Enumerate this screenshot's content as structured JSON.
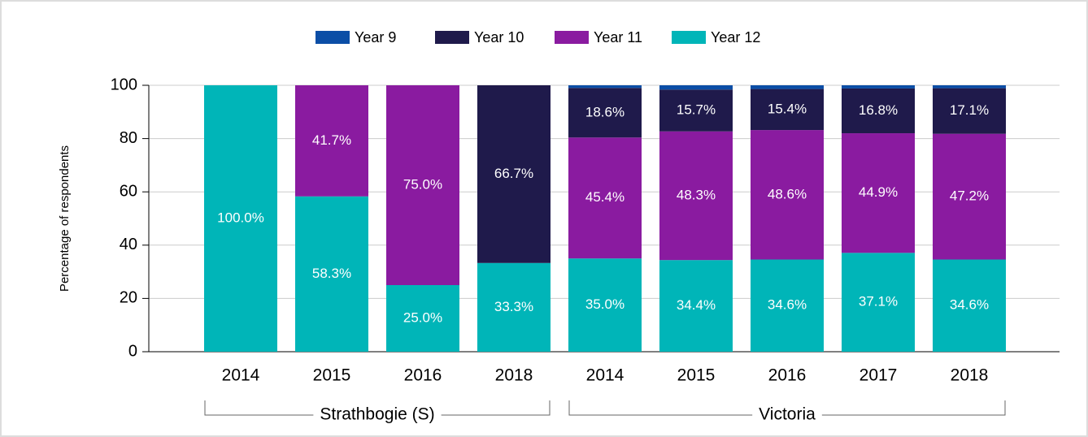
{
  "chart_data": {
    "type": "stacked_bar",
    "ylabel": "Percentage of respondents",
    "categories": [
      "2014",
      "2015",
      "2016",
      "2018",
      "2014",
      "2015",
      "2016",
      "2017",
      "2018"
    ],
    "groups": [
      {
        "label": "Strathbogie (S)",
        "count": 4
      },
      {
        "label": "Victoria",
        "count": 5
      }
    ],
    "series": [
      {
        "name": "Year 12",
        "color": "#00b5b8",
        "values": [
          100,
          58.3,
          25.0,
          33.3,
          35.0,
          34.4,
          34.6,
          37.1,
          34.6
        ],
        "value_labels": [
          "100.0%",
          "58.3%",
          "25.0%",
          "33.3%",
          "35.0%",
          "34.4%",
          "34.6%",
          "37.1%",
          "34.6%"
        ]
      },
      {
        "name": "Year 11",
        "color": "#8a1ba0",
        "values": [
          0,
          41.7,
          75.0,
          0,
          45.4,
          48.3,
          48.6,
          44.9,
          47.2
        ],
        "value_labels": [
          null,
          "41.7%",
          "75.0%",
          null,
          "45.4%",
          "48.3%",
          "48.6%",
          "44.9%",
          "47.2%"
        ]
      },
      {
        "name": "Year 10",
        "color": "#1f1a4b",
        "values": [
          0,
          0,
          0,
          66.7,
          18.6,
          15.7,
          15.4,
          16.8,
          17.1
        ],
        "value_labels": [
          null,
          null,
          null,
          "66.7%",
          "18.6%",
          "15.7%",
          "15.4%",
          "16.8%",
          "17.1%"
        ]
      },
      {
        "name": "Year 9",
        "color": "#0b4ea6",
        "values": [
          0,
          0,
          0,
          0,
          1.0,
          1.6,
          1.4,
          1.2,
          1.1
        ]
      }
    ],
    "legend_order": [
      3,
      2,
      1,
      0
    ],
    "ylim": [
      0,
      100
    ],
    "yticks": [
      0,
      20,
      40,
      60,
      80,
      100
    ],
    "grid": true
  }
}
